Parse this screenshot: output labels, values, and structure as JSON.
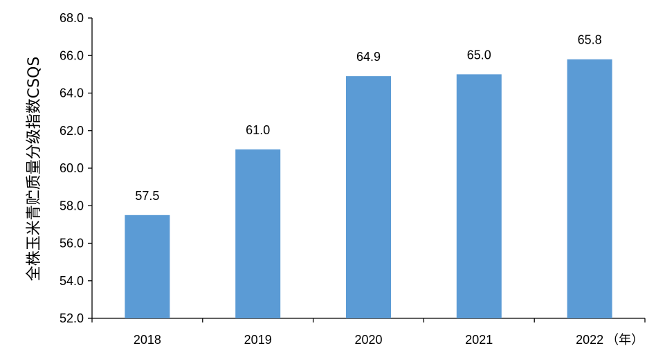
{
  "chart_data": {
    "type": "bar",
    "categories": [
      "2018",
      "2019",
      "2020",
      "2021",
      "2022"
    ],
    "values": [
      57.5,
      61.0,
      64.9,
      65.0,
      65.8
    ],
    "data_labels": [
      "57.5",
      "61.0",
      "64.9",
      "65.0",
      "65.8"
    ],
    "title": "",
    "xlabel": "",
    "x_unit_label": "（年）",
    "ylabel": "全株玉米青贮质量分级指数CSQS",
    "ylim": [
      52.0,
      68.0
    ],
    "yticks": [
      "52.0",
      "54.0",
      "56.0",
      "58.0",
      "60.0",
      "62.0",
      "64.0",
      "66.0",
      "68.0"
    ],
    "ytick_values": [
      52,
      54,
      56,
      58,
      60,
      62,
      64,
      66,
      68
    ],
    "bar_color": "#5B9BD5",
    "grid": false,
    "legend": "none"
  }
}
